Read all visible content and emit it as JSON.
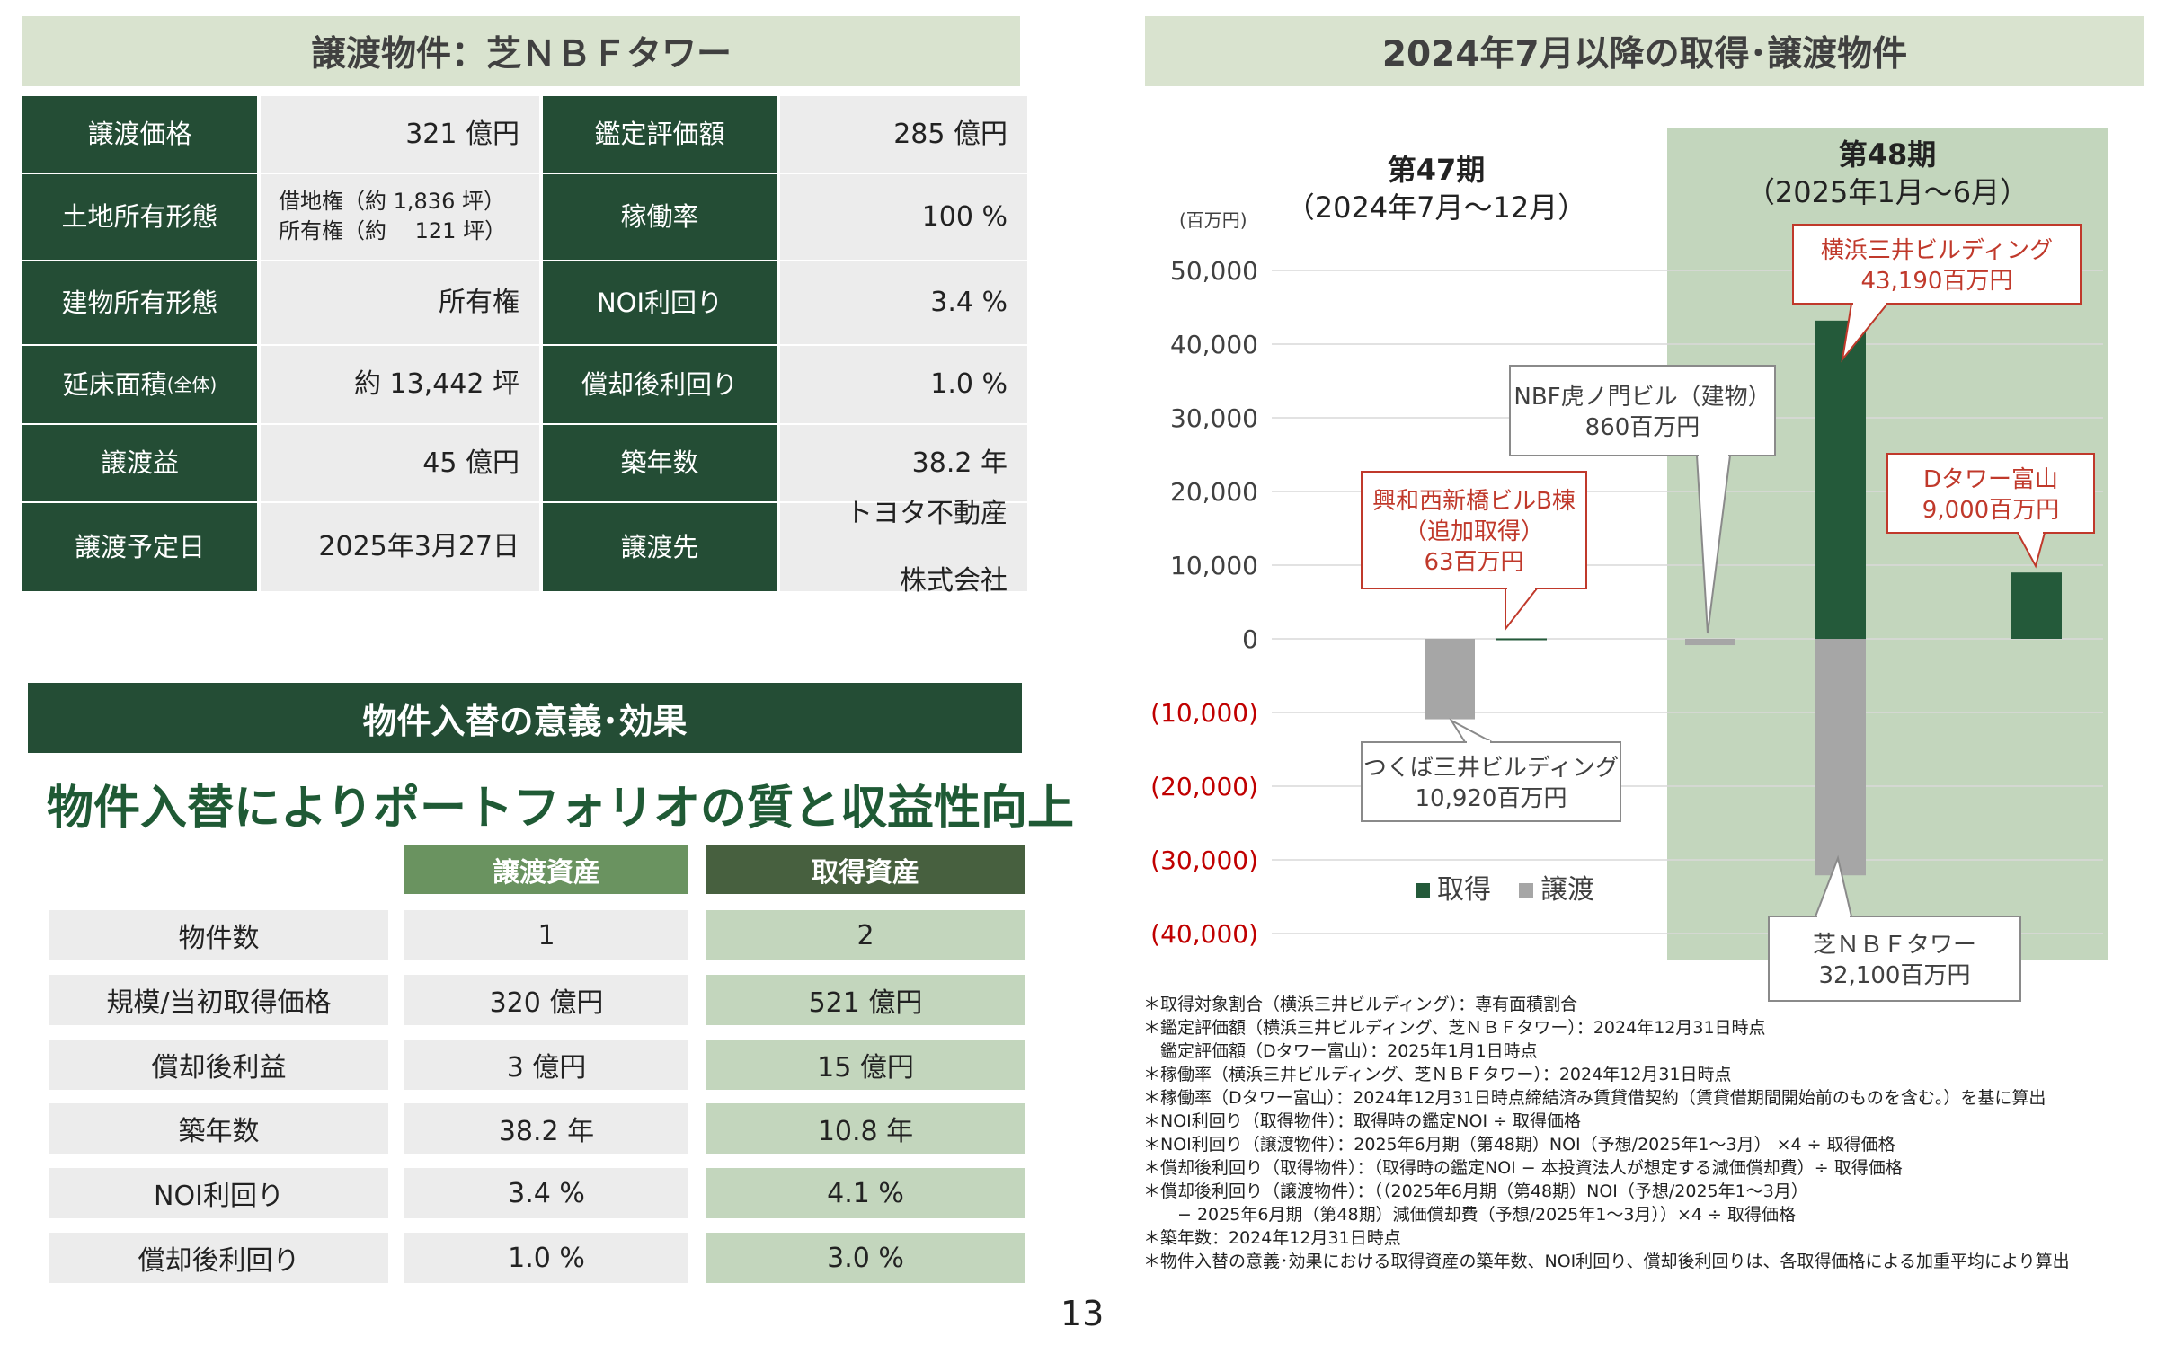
{
  "transfer": {
    "header": "譲渡物件：芝ＮＢＦタワー",
    "rows": [
      {
        "l1": "譲渡価格",
        "l2": "",
        "v": "321 億円",
        "v2": "",
        "r1": "鑑定評価額",
        "rv": "285 億円",
        "rv2": ""
      },
      {
        "l1": "土地",
        "l2": "所有形態",
        "v": "借地権（約 1,836 坪）",
        "v2": "所有権（約　 121 坪）",
        "r1": "稼働率",
        "rv": "100 %",
        "rv2": ""
      },
      {
        "l1": "建物",
        "l2": "所有形態",
        "v": "所有権",
        "v2": "",
        "r1": "NOI利回り",
        "rv": "3.4 %",
        "rv2": ""
      },
      {
        "l1": "延床面積",
        "l1s": "(全体)",
        "l2": "",
        "v": "約 13,442 坪",
        "v2": "",
        "r1": "償却後利回り",
        "rv": "1.0 %",
        "rv2": ""
      },
      {
        "l1": "譲渡益",
        "l2": "",
        "v": "45 億円",
        "v2": "",
        "r1": "築年数",
        "rv": "38.2 年",
        "rv2": ""
      },
      {
        "l1": "譲渡",
        "l2": "予定日",
        "v": "2025年3月27日",
        "v2": "",
        "r1": "譲渡先",
        "rv": "トヨタ不動産",
        "rv2": "株式会社"
      }
    ]
  },
  "significance": {
    "header": "物件入替の意義･効果",
    "headline": "物件入替によりポートフォリオの質と収益性向上",
    "col_transfer": "譲渡資産",
    "col_acquire": "取得資産",
    "rows": [
      {
        "label": "物件数",
        "transfer": "1",
        "acquire": "2"
      },
      {
        "label": "規模/当初取得価格",
        "transfer": "320 億円",
        "acquire": "521 億円"
      },
      {
        "label": "償却後利益",
        "transfer": "3 億円",
        "acquire": "15 億円"
      },
      {
        "label": "築年数",
        "transfer": "38.2 年",
        "acquire": "10.8 年"
      },
      {
        "label": "NOI利回り",
        "transfer": "3.4 %",
        "acquire": "4.1 %"
      },
      {
        "label": "償却後利回り",
        "transfer": "1.0 %",
        "acquire": "3.0 %"
      }
    ]
  },
  "chart_header": "2024年7月以降の取得･譲渡物件",
  "chart_data": {
    "type": "bar",
    "unit": "(百万円)",
    "ylim": [
      -40000,
      50000
    ],
    "yticks": [
      "50,000",
      "40,000",
      "30,000",
      "20,000",
      "10,000",
      "0",
      "(10,000)",
      "(20,000)",
      "(30,000)",
      "(40,000)"
    ],
    "ytick_values": [
      50000,
      40000,
      30000,
      20000,
      10000,
      0,
      -10000,
      -20000,
      -30000,
      -40000
    ],
    "periods": [
      {
        "title": "第47期",
        "subtitle": "（2024年7月～12月）"
      },
      {
        "title": "第48期",
        "subtitle": "（2025年1月～6月）"
      }
    ],
    "legend": [
      {
        "name": "取得",
        "color": "#245a3a"
      },
      {
        "name": "譲渡",
        "color": "#a6a6a6"
      }
    ],
    "bars": [
      {
        "series": "譲渡",
        "value": -10920
      },
      {
        "series": "取得",
        "value": 63
      },
      {
        "series": "譲渡",
        "value": -860
      },
      {
        "series": "取得",
        "value": 43190
      },
      {
        "series": "譲渡",
        "value": -32100
      },
      {
        "series": "取得",
        "value": 9000
      }
    ],
    "callouts": [
      {
        "lines": [
          "つくば三井ビルディング",
          "10,920百万円"
        ],
        "style": "gray"
      },
      {
        "lines": [
          "興和西新橋ビルB棟",
          "（追加取得）",
          "63百万円"
        ],
        "style": "red"
      },
      {
        "lines": [
          "NBF虎ノ門ビル（建物）",
          "860百万円"
        ],
        "style": "gray"
      },
      {
        "lines": [
          "横浜三井ビルディング",
          "43,190百万円"
        ],
        "style": "redfill"
      },
      {
        "lines": [
          "芝ＮＢＦタワー",
          "32,100百万円"
        ],
        "style": "gray"
      },
      {
        "lines": [
          "Dタワー富山",
          "9,000百万円"
        ],
        "style": "red"
      }
    ],
    "colors": {
      "acquire": "#245a3a",
      "transfer": "#a6a6a6",
      "period48_bg": "#c3d6bd",
      "negative_tick": "#c00000",
      "callout_red": "#c0392b"
    }
  },
  "notes": [
    "＊取得対象割合（横浜三井ビルディング）：専有面積割合",
    "＊鑑定評価額（横浜三井ビルディング、芝ＮＢＦタワー）：2024年12月31日時点",
    "　鑑定評価額（Dタワー富山）：2025年1月1日時点",
    "＊稼働率（横浜三井ビルディング、芝ＮＢＦタワー）：2024年12月31日時点",
    "＊稼働率（Dタワー富山）：2024年12月31日時点締結済み賃貸借契約（賃貸借期間開始前のものを含む。）を基に算出",
    "＊NOI利回り（取得物件）：取得時の鑑定NOI ÷ 取得価格",
    "＊NOI利回り（譲渡物件）：2025年6月期（第48期）NOI（予想/2025年1～3月） ×4 ÷ 取得価格",
    "＊償却後利回り（取得物件）：（取得時の鑑定NOI − 本投資法人が想定する減価償却費）÷ 取得価格",
    "＊償却後利回り（譲渡物件）：（（2025年6月期（第48期）NOI（予想/2025年1～3月）",
    "　　− 2025年6月期（第48期）減価償却費（予想/2025年1～3月））×4 ÷ 取得価格",
    "＊築年数：2024年12月31日時点",
    "＊物件入替の意義･効果における取得資産の築年数、NOI利回り、償却後利回りは、各取得価格による加重平均により算出"
  ],
  "page_number": "13"
}
